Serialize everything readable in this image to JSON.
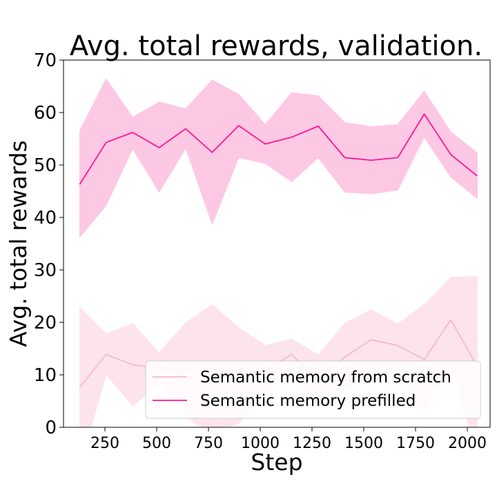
{
  "chart_data": {
    "type": "line",
    "title": "Avg. total rewards, validation.",
    "xlabel": "Step",
    "ylabel": "Avg. total rewards",
    "xlim": [
      50,
      2110
    ],
    "ylim": [
      0,
      70
    ],
    "xticks": [
      250,
      500,
      750,
      1000,
      1250,
      1500,
      1750,
      2000
    ],
    "yticks": [
      0,
      10,
      20,
      30,
      40,
      50,
      60,
      70
    ],
    "grid": false,
    "legend_position": "lower right",
    "x": [
      128,
      256,
      384,
      512,
      640,
      768,
      896,
      1024,
      1152,
      1280,
      1408,
      1536,
      1664,
      1792,
      1920,
      2048
    ],
    "series": [
      {
        "name": "Semantic memory from scratch",
        "color": "#f7b8c8",
        "band_color": "#fde4ec",
        "values": [
          7.6,
          13.9,
          11.9,
          11.3,
          10.9,
          11.2,
          9.9,
          10.9,
          13.9,
          8.8,
          13.4,
          16.7,
          15.6,
          12.9,
          20.5,
          11.6
        ],
        "lower": [
          -7.6,
          10.0,
          4.1,
          8.3,
          1.9,
          -1.1,
          0.8,
          6.2,
          11.0,
          3.7,
          7.0,
          11.0,
          11.3,
          2.5,
          12.4,
          -5.6
        ],
        "upper": [
          22.9,
          17.8,
          19.8,
          14.2,
          19.9,
          23.4,
          19.0,
          15.6,
          16.8,
          13.8,
          19.8,
          22.4,
          19.7,
          23.4,
          28.6,
          28.8
        ]
      },
      {
        "name": "Semantic memory prefilled",
        "color": "#ff1493",
        "band_color": "#fdc8e3",
        "values": [
          46.3,
          54.3,
          56.2,
          53.3,
          56.9,
          52.4,
          57.5,
          54.0,
          55.3,
          57.4,
          51.4,
          50.9,
          51.4,
          59.7,
          52.0,
          47.9
        ],
        "lower": [
          36.2,
          42.3,
          53.1,
          44.8,
          53.2,
          38.7,
          51.4,
          50.3,
          46.8,
          51.4,
          44.8,
          44.5,
          45.2,
          55.3,
          47.7,
          43.6
        ],
        "upper": [
          56.5,
          66.4,
          59.1,
          62.0,
          60.7,
          66.2,
          63.5,
          57.7,
          63.8,
          63.2,
          58.1,
          57.3,
          57.7,
          64.1,
          56.3,
          52.3
        ]
      }
    ]
  }
}
